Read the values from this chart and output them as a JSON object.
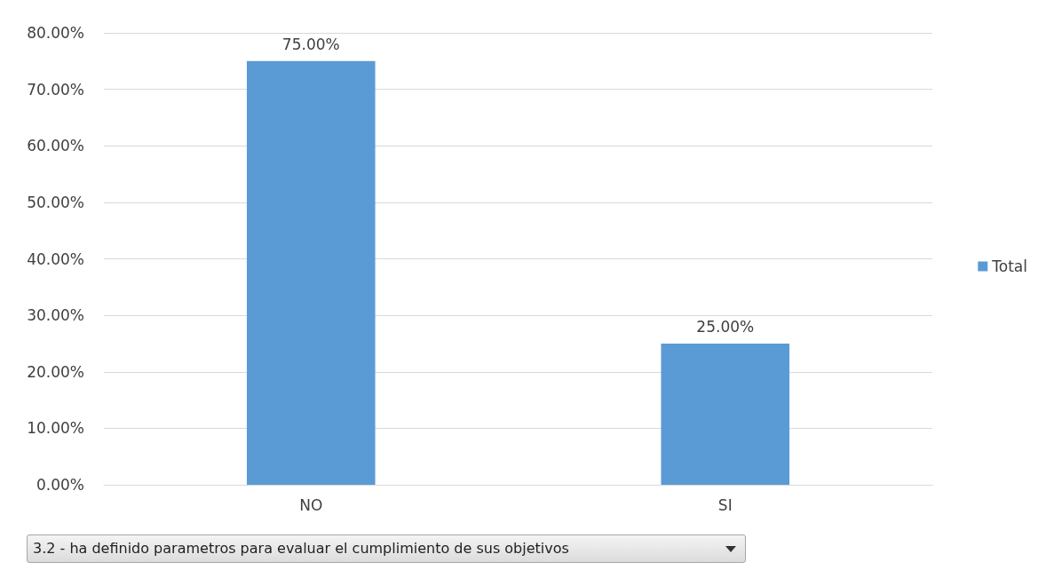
{
  "chart_data": {
    "type": "bar",
    "xlabel": "3.2 - ha definido parametros para evaluar el cumplimiento de sus objetivos",
    "categories": [
      "NO",
      "SI"
    ],
    "series": [
      {
        "name": "Total",
        "color": "#5b9bd5",
        "values": [
          75,
          25
        ],
        "value_labels": [
          "75.00%",
          "25.00%"
        ]
      }
    ],
    "ylim": [
      0,
      80
    ],
    "yticks": [
      {
        "value": 0,
        "label": "0.00%"
      },
      {
        "value": 10,
        "label": "10.00%"
      },
      {
        "value": 20,
        "label": "20.00%"
      },
      {
        "value": 30,
        "label": "30.00%"
      },
      {
        "value": 40,
        "label": "40.00%"
      },
      {
        "value": 50,
        "label": "50.00%"
      },
      {
        "value": 60,
        "label": "60.00%"
      },
      {
        "value": 70,
        "label": "70.00%"
      },
      {
        "value": 80,
        "label": "80.00%"
      }
    ],
    "grid": true,
    "legend": "right"
  }
}
